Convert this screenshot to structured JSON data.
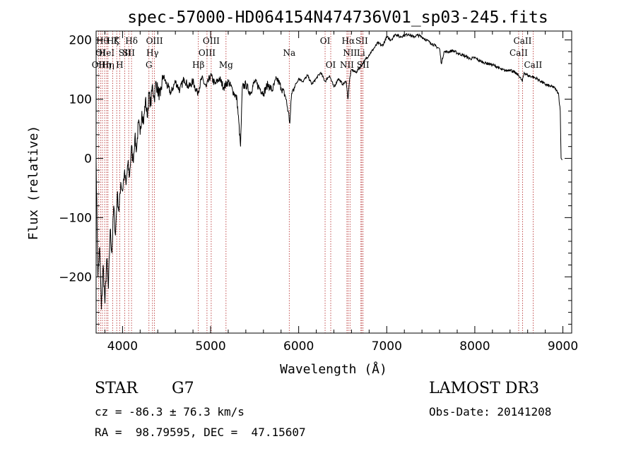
{
  "chart_data": {
    "type": "line",
    "title": "spec-57000-HD064154N474736V01_sp03-245.fits",
    "xlabel": "Wavelength (Å)",
    "ylabel": "Flux (relative)",
    "xlim": [
      3700,
      9100
    ],
    "ylim": [
      -295,
      215
    ],
    "xticks": [
      {
        "value": 4000,
        "label": "4000"
      },
      {
        "value": 5000,
        "label": "5000"
      },
      {
        "value": 6000,
        "label": "6000"
      },
      {
        "value": 7000,
        "label": "7000"
      },
      {
        "value": 8000,
        "label": "8000"
      },
      {
        "value": 9000,
        "label": "9000"
      }
    ],
    "yticks": [
      {
        "value": -200,
        "label": "−200"
      },
      {
        "value": -100,
        "label": "−100"
      },
      {
        "value": 0,
        "label": "0"
      },
      {
        "value": 100,
        "label": "100"
      },
      {
        "value": 200,
        "label": "200"
      }
    ],
    "series": [
      {
        "color": "#000000",
        "x": [
          3700,
          3720,
          3740,
          3760,
          3780,
          3800,
          3820,
          3840,
          3860,
          3880,
          3900,
          3920,
          3940,
          3960,
          3980,
          4000,
          4020,
          4040,
          4060,
          4080,
          4100,
          4120,
          4140,
          4160,
          4180,
          4200,
          4220,
          4240,
          4260,
          4280,
          4300,
          4320,
          4340,
          4360,
          4380,
          4400,
          4430,
          4460,
          4500,
          4550,
          4600,
          4650,
          4700,
          4750,
          4800,
          4850,
          4900,
          4950,
          5000,
          5050,
          5100,
          5150,
          5200,
          5250,
          5300,
          5340,
          5360,
          5400,
          5450,
          5500,
          5550,
          5600,
          5650,
          5700,
          5750,
          5800,
          5850,
          5880,
          5900,
          5920,
          5950,
          6000,
          6050,
          6100,
          6150,
          6200,
          6250,
          6300,
          6350,
          6400,
          6450,
          6500,
          6540,
          6560,
          6580,
          6600,
          6650,
          6700,
          6750,
          6800,
          6850,
          6900,
          6950,
          7000,
          7050,
          7100,
          7150,
          7200,
          7250,
          7300,
          7350,
          7400,
          7450,
          7500,
          7550,
          7600,
          7620,
          7650,
          7700,
          7750,
          7800,
          7850,
          7900,
          7950,
          8000,
          8050,
          8100,
          8150,
          8200,
          8250,
          8300,
          8350,
          8400,
          8450,
          8500,
          8540,
          8560,
          8600,
          8650,
          8700,
          8750,
          8800,
          8850,
          8900,
          8950,
          8970,
          8980,
          8990
        ],
        "y": [
          0,
          -200,
          -150,
          -255,
          -180,
          -245,
          -170,
          -220,
          -120,
          -160,
          -80,
          -130,
          -60,
          -90,
          -40,
          -55,
          -25,
          -45,
          -10,
          -30,
          20,
          -5,
          35,
          15,
          60,
          40,
          80,
          60,
          100,
          70,
          110,
          90,
          125,
          100,
          130,
          115,
          105,
          140,
          125,
          110,
          130,
          115,
          135,
          120,
          130,
          110,
          135,
          120,
          140,
          125,
          135,
          120,
          130,
          115,
          100,
          20,
          120,
          125,
          110,
          130,
          120,
          110,
          125,
          115,
          135,
          120,
          105,
          80,
          60,
          110,
          120,
          135,
          130,
          140,
          125,
          135,
          145,
          130,
          140,
          120,
          135,
          125,
          130,
          100,
          135,
          150,
          145,
          155,
          165,
          175,
          185,
          195,
          190,
          205,
          200,
          210,
          205,
          208,
          210,
          205,
          208,
          205,
          200,
          195,
          190,
          185,
          160,
          180,
          180,
          182,
          178,
          175,
          172,
          168,
          170,
          165,
          162,
          160,
          158,
          155,
          150,
          148,
          150,
          145,
          140,
          130,
          145,
          140,
          138,
          135,
          130,
          125,
          122,
          120,
          110,
          80,
          0,
          -3
        ]
      }
    ],
    "spectral_lines": [
      {
        "x": 3727,
        "label": "OII",
        "row": 3
      },
      {
        "x": 3750,
        "label": "OI",
        "row": 2
      },
      {
        "x": 3771,
        "label": "Hθ",
        "row": 1
      },
      {
        "x": 3797,
        "label": "Hη",
        "row": 3
      },
      {
        "x": 3820,
        "label": "HeI",
        "row": 2
      },
      {
        "x": 3835,
        "label": "Hη",
        "row": 3
      },
      {
        "x": 3889,
        "label": "Hζ",
        "row": 1
      },
      {
        "x": 3934,
        "label": "K",
        "row": 1
      },
      {
        "x": 3968,
        "label": "H",
        "row": 3
      },
      {
        "x": 4026,
        "label": "SII",
        "row": 2
      },
      {
        "x": 4102,
        "label": "Hδ",
        "row": 1
      },
      {
        "x": 4070,
        "label": "SII",
        "row": 2
      },
      {
        "x": 4300,
        "label": "G",
        "row": 3
      },
      {
        "x": 4340,
        "label": "Hγ",
        "row": 2
      },
      {
        "x": 4363,
        "label": "OIII",
        "row": 1
      },
      {
        "x": 4861,
        "label": "Hβ",
        "row": 3
      },
      {
        "x": 4959,
        "label": "OIII",
        "row": 2
      },
      {
        "x": 5007,
        "label": "OIII",
        "row": 1
      },
      {
        "x": 5175,
        "label": "Mg",
        "row": 3
      },
      {
        "x": 5893,
        "label": "Na",
        "row": 2
      },
      {
        "x": 6300,
        "label": "OI",
        "row": 1
      },
      {
        "x": 6364,
        "label": "OI",
        "row": 3
      },
      {
        "x": 6548,
        "label": "NII",
        "row": 3
      },
      {
        "x": 6563,
        "label": "Hα",
        "row": 1
      },
      {
        "x": 6583,
        "label": "NII",
        "row": 2
      },
      {
        "x": 6707,
        "label": "Li",
        "row": 2
      },
      {
        "x": 6716,
        "label": "SII",
        "row": 1
      },
      {
        "x": 6731,
        "label": "SII",
        "row": 3
      },
      {
        "x": 8498,
        "label": "CaII",
        "row": 2
      },
      {
        "x": 8542,
        "label": "CaII",
        "row": 1
      },
      {
        "x": 8662,
        "label": "CaII",
        "row": 3
      }
    ]
  },
  "info": {
    "object_type": "STAR",
    "subclass": "G7",
    "survey": "LAMOST DR3",
    "cz": "cz = -86.3 ± 76.3 km/s",
    "obs_date": "Obs-Date: 20141208",
    "radec": "RA =  98.79595, DEC =  47.15607"
  }
}
